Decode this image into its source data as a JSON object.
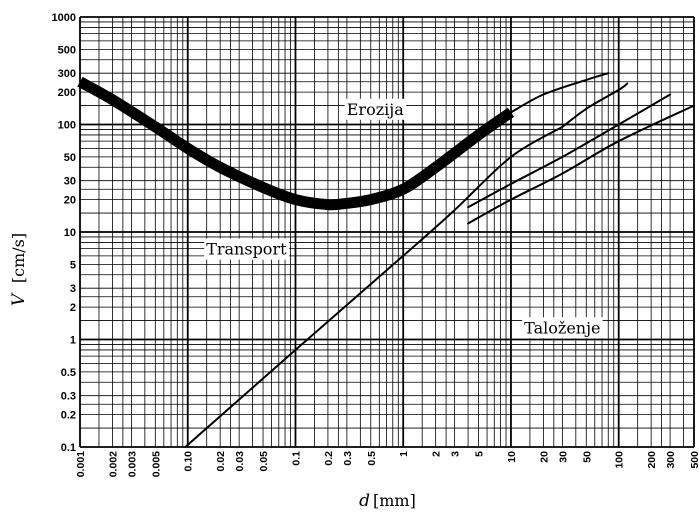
{
  "chart_data": {
    "type": "line",
    "title": "",
    "xlabel": "d",
    "xlabel_unit": "[mm]",
    "ylabel": "V",
    "ylabel_unit": "[cm/s]",
    "xscale": "log",
    "yscale": "log",
    "xlim": [
      0.001,
      500
    ],
    "ylim": [
      0.1,
      1000
    ],
    "grid": true,
    "x_ticks": [
      "0.001",
      "0.002",
      "0.003",
      "0.005",
      "0.10",
      "0.02",
      "0.03",
      "0.05",
      "0.1",
      "0.2",
      "0.3",
      "0.5",
      "1",
      "2",
      "3",
      "5",
      "10",
      "20",
      "30",
      "50",
      "100",
      "200",
      "300",
      "500"
    ],
    "y_ticks": [
      "1000",
      "500",
      "300",
      "200",
      "100",
      "50",
      "30",
      "20",
      "10",
      "5",
      "3",
      "2",
      "1",
      "0.5",
      "0.3",
      "0.2",
      "0.1"
    ],
    "regions": [
      {
        "label": "Erozija",
        "x": 0.55,
        "y": 140
      },
      {
        "label": "Transport",
        "x": 0.035,
        "y": 7
      },
      {
        "label": "Taloženje",
        "x": 30,
        "y": 1.3
      }
    ],
    "series": [
      {
        "kind": "erosion-band",
        "x": [
          0.001,
          0.002,
          0.005,
          0.01,
          0.02,
          0.05,
          0.1,
          0.2,
          0.3,
          0.5,
          1,
          2,
          5,
          10
        ],
        "y": [
          250,
          170,
          95,
          60,
          40,
          26,
          20,
          18,
          18.5,
          20,
          25,
          40,
          80,
          130
        ]
      },
      {
        "kind": "deposition-line",
        "x": [
          0.0095,
          0.1,
          1,
          3,
          10,
          30
        ],
        "y": [
          0.1,
          0.8,
          6,
          16,
          50,
          95
        ]
      },
      {
        "kind": "erosion-upper",
        "x": [
          10,
          20,
          50,
          80
        ],
        "y": [
          130,
          190,
          260,
          300
        ]
      },
      {
        "kind": "deposition-upper",
        "x": [
          30,
          50,
          100,
          120
        ],
        "y": [
          95,
          140,
          210,
          240
        ]
      },
      {
        "kind": "transport-upper",
        "x": [
          4,
          10,
          30,
          100,
          300
        ],
        "y": [
          17,
          28,
          50,
          100,
          190
        ]
      },
      {
        "kind": "transport-lower",
        "x": [
          4,
          10,
          30,
          100,
          500
        ],
        "y": [
          12,
          20,
          35,
          70,
          150
        ]
      }
    ]
  }
}
